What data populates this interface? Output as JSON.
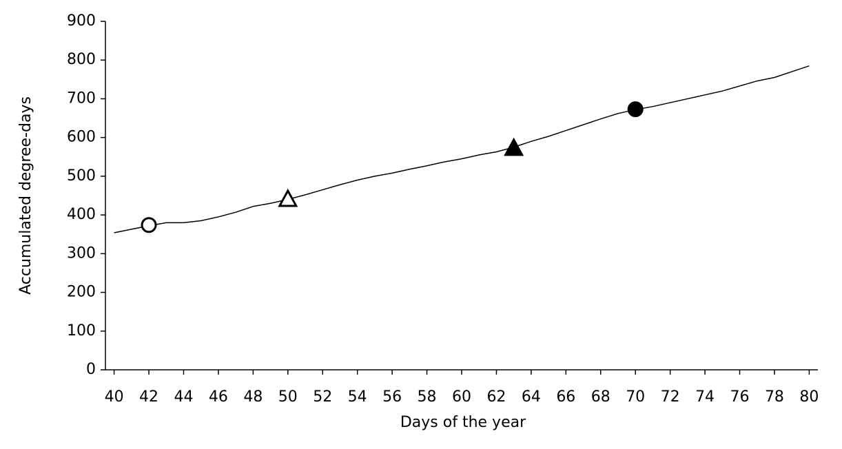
{
  "chart_data": {
    "type": "line",
    "x_label": "Days of the year",
    "y_label": "Accumulated degree-days",
    "x": [
      40,
      41,
      42,
      43,
      44,
      45,
      46,
      47,
      48,
      49,
      50,
      51,
      52,
      53,
      54,
      55,
      56,
      57,
      58,
      59,
      60,
      61,
      62,
      63,
      64,
      65,
      66,
      67,
      68,
      69,
      70,
      71,
      72,
      73,
      74,
      75,
      76,
      77,
      78,
      79,
      80
    ],
    "series": [
      {
        "color": "#000000",
        "values": [
          354,
          363,
          372,
          380,
          380,
          385,
          395,
          407,
          422,
          430,
          440,
          452,
          465,
          478,
          490,
          500,
          508,
          518,
          527,
          537,
          545,
          555,
          563,
          575,
          590,
          603,
          618,
          633,
          648,
          662,
          672,
          680,
          690,
          700,
          710,
          720,
          733,
          746,
          755,
          770,
          785
        ]
      }
    ],
    "markers": [
      {
        "x": 42,
        "y": 374,
        "shape": "circle",
        "filled": false
      },
      {
        "x": 50,
        "y": 441,
        "shape": "triangle",
        "filled": false
      },
      {
        "x": 63,
        "y": 573,
        "shape": "triangle",
        "filled": true
      },
      {
        "x": 70,
        "y": 673,
        "shape": "circle",
        "filled": true
      }
    ],
    "xlim": [
      39.5,
      80.5
    ],
    "xticks": [
      40,
      42,
      44,
      46,
      48,
      50,
      52,
      54,
      56,
      58,
      60,
      62,
      64,
      66,
      68,
      70,
      72,
      74,
      76,
      78,
      80
    ],
    "ylim": [
      0,
      900
    ],
    "yticks": [
      0,
      100,
      200,
      300,
      400,
      500,
      600,
      700,
      800,
      900
    ],
    "grid": false
  }
}
